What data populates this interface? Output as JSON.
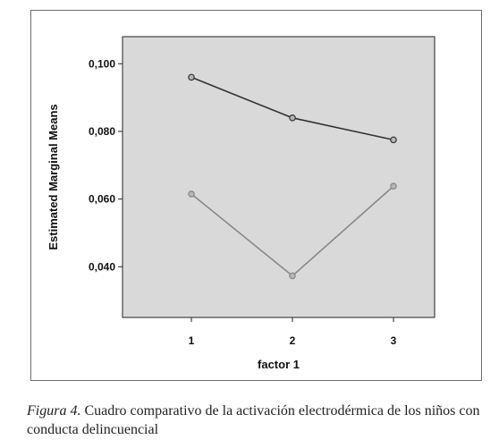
{
  "chart_data": {
    "type": "line",
    "title": "",
    "xlabel": "factor 1",
    "ylabel": "Estimated Marginal Means",
    "categories": [
      "1",
      "2",
      "3"
    ],
    "ylim": [
      0.025,
      0.108
    ],
    "y_ticks": [
      0.04,
      0.06,
      0.08,
      0.1
    ],
    "y_tick_labels": [
      "0,040",
      "0,060",
      "0,080",
      "0,100"
    ],
    "grid": false,
    "legend": "none",
    "plot_background": "#d9d9d9",
    "series": [
      {
        "values": [
          0.096,
          0.084,
          0.0775
        ],
        "color": "#333333"
      },
      {
        "values": [
          0.0615,
          0.0373,
          0.0638
        ],
        "color": "#888888"
      }
    ]
  },
  "caption": {
    "label": "Figura 4.",
    "text": " Cuadro comparativo de la activación electrodérmica de los niños con conducta delincuencial"
  }
}
